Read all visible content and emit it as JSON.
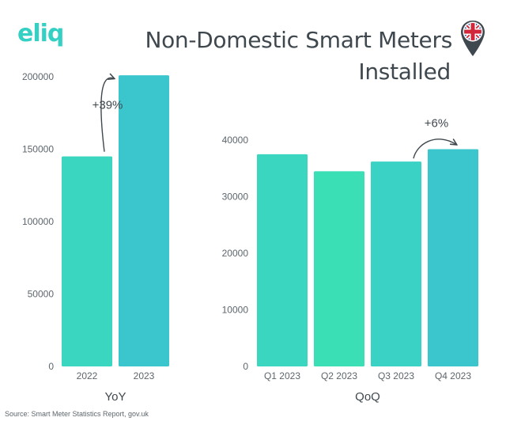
{
  "brand": {
    "logo_text": "eliq",
    "color": "#35d0c4"
  },
  "title_line1": "Non-Domestic Smart Meters",
  "title_line2": "Installed",
  "flag_icon": "uk-flag-pin-icon",
  "source": "Source: Smart Meter Statistics Report, gov.uk",
  "chart_data": [
    {
      "type": "bar",
      "title": "",
      "xlabel": "YoY",
      "ylabel": "",
      "categories": [
        "2022",
        "2023"
      ],
      "values": [
        145000,
        201000
      ],
      "ylim": [
        0,
        200000
      ],
      "yticks": [
        0,
        50000,
        100000,
        150000,
        200000
      ],
      "colors": [
        "#3ad6c0",
        "#3ac6cc"
      ],
      "annotation": {
        "text": "+39%",
        "from": "2022",
        "to": "2023"
      },
      "grid": false
    },
    {
      "type": "bar",
      "title": "",
      "xlabel": "QoQ",
      "ylabel": "",
      "categories": [
        "Q1 2023",
        "Q2 2023",
        "Q3 2023",
        "Q4 2023"
      ],
      "values": [
        37500,
        34500,
        36200,
        38400
      ],
      "ylim": [
        0,
        40000
      ],
      "yticks": [
        0,
        10000,
        20000,
        30000,
        40000
      ],
      "colors": [
        "#3ad6c0",
        "#3adfb6",
        "#3ad2c4",
        "#3ac6cc"
      ],
      "annotation": {
        "text": "+6%",
        "from": "Q3 2023",
        "to": "Q4 2023"
      },
      "grid": false
    }
  ]
}
